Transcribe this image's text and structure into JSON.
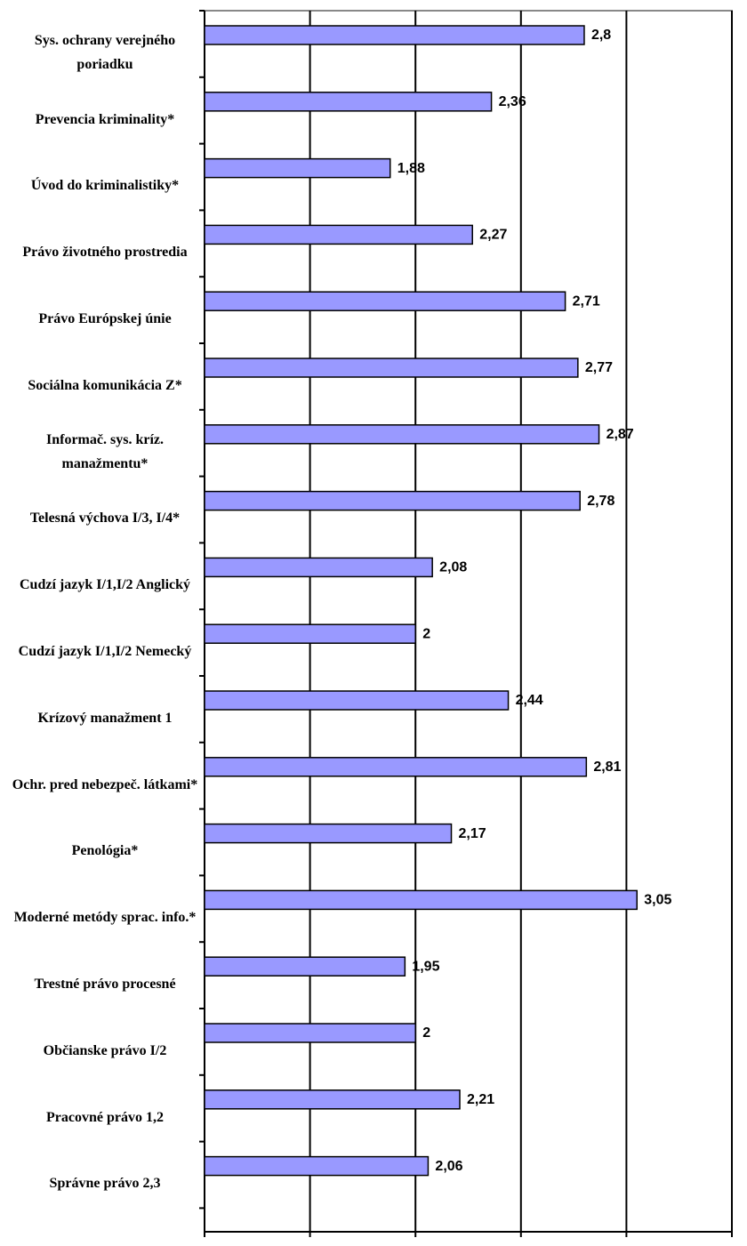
{
  "chart_data": {
    "type": "barh",
    "categories": [
      "Sys. ochrany verejného poriadku",
      "Prevencia kriminality*",
      "Úvod do kriminalistiky*",
      "Právo životného prostredia",
      "Právo Európskej únie",
      "Sociálna komunikácia Z*",
      "Informač. sys. kríz. manažmentu*",
      "Telesná výchova I/3, I/4*",
      "Cudzí jazyk I/1,I/2 Anglický",
      "Cudzí jazyk I/1,I/2 Nemecký",
      "Krízový manažment 1",
      "Ochr. pred nebezpeč. látkami*",
      "Penológia*",
      "Moderné metódy sprac. info.*",
      "Trestné právo procesné",
      "Občianske právo I/2",
      "Pracovné právo 1,2",
      "Správne právo 2,3"
    ],
    "values": [
      2.8,
      2.36,
      1.88,
      2.27,
      2.71,
      2.77,
      2.87,
      2.78,
      2.08,
      2,
      2.44,
      2.81,
      2.17,
      3.05,
      1.95,
      2,
      2.21,
      2.06
    ],
    "value_labels": [
      "2,8",
      "2,36",
      "1,88",
      "2,27",
      "2,71",
      "2,77",
      "2,87",
      "2,78",
      "2,08",
      "2",
      "2,44",
      "2,81",
      "2,17",
      "3,05",
      "1,95",
      "2",
      "2,21",
      "2,06"
    ],
    "color": "#9999ff",
    "xlim": [
      1,
      3.5
    ],
    "xticks": [
      1,
      {
        "value": 1.5,
        "label": "1,5"
      },
      2,
      {
        "value": 2.5,
        "label": "2,5"
      },
      3,
      {
        "value": 3.5,
        "label": "3,5"
      }
    ],
    "grid": true
  }
}
